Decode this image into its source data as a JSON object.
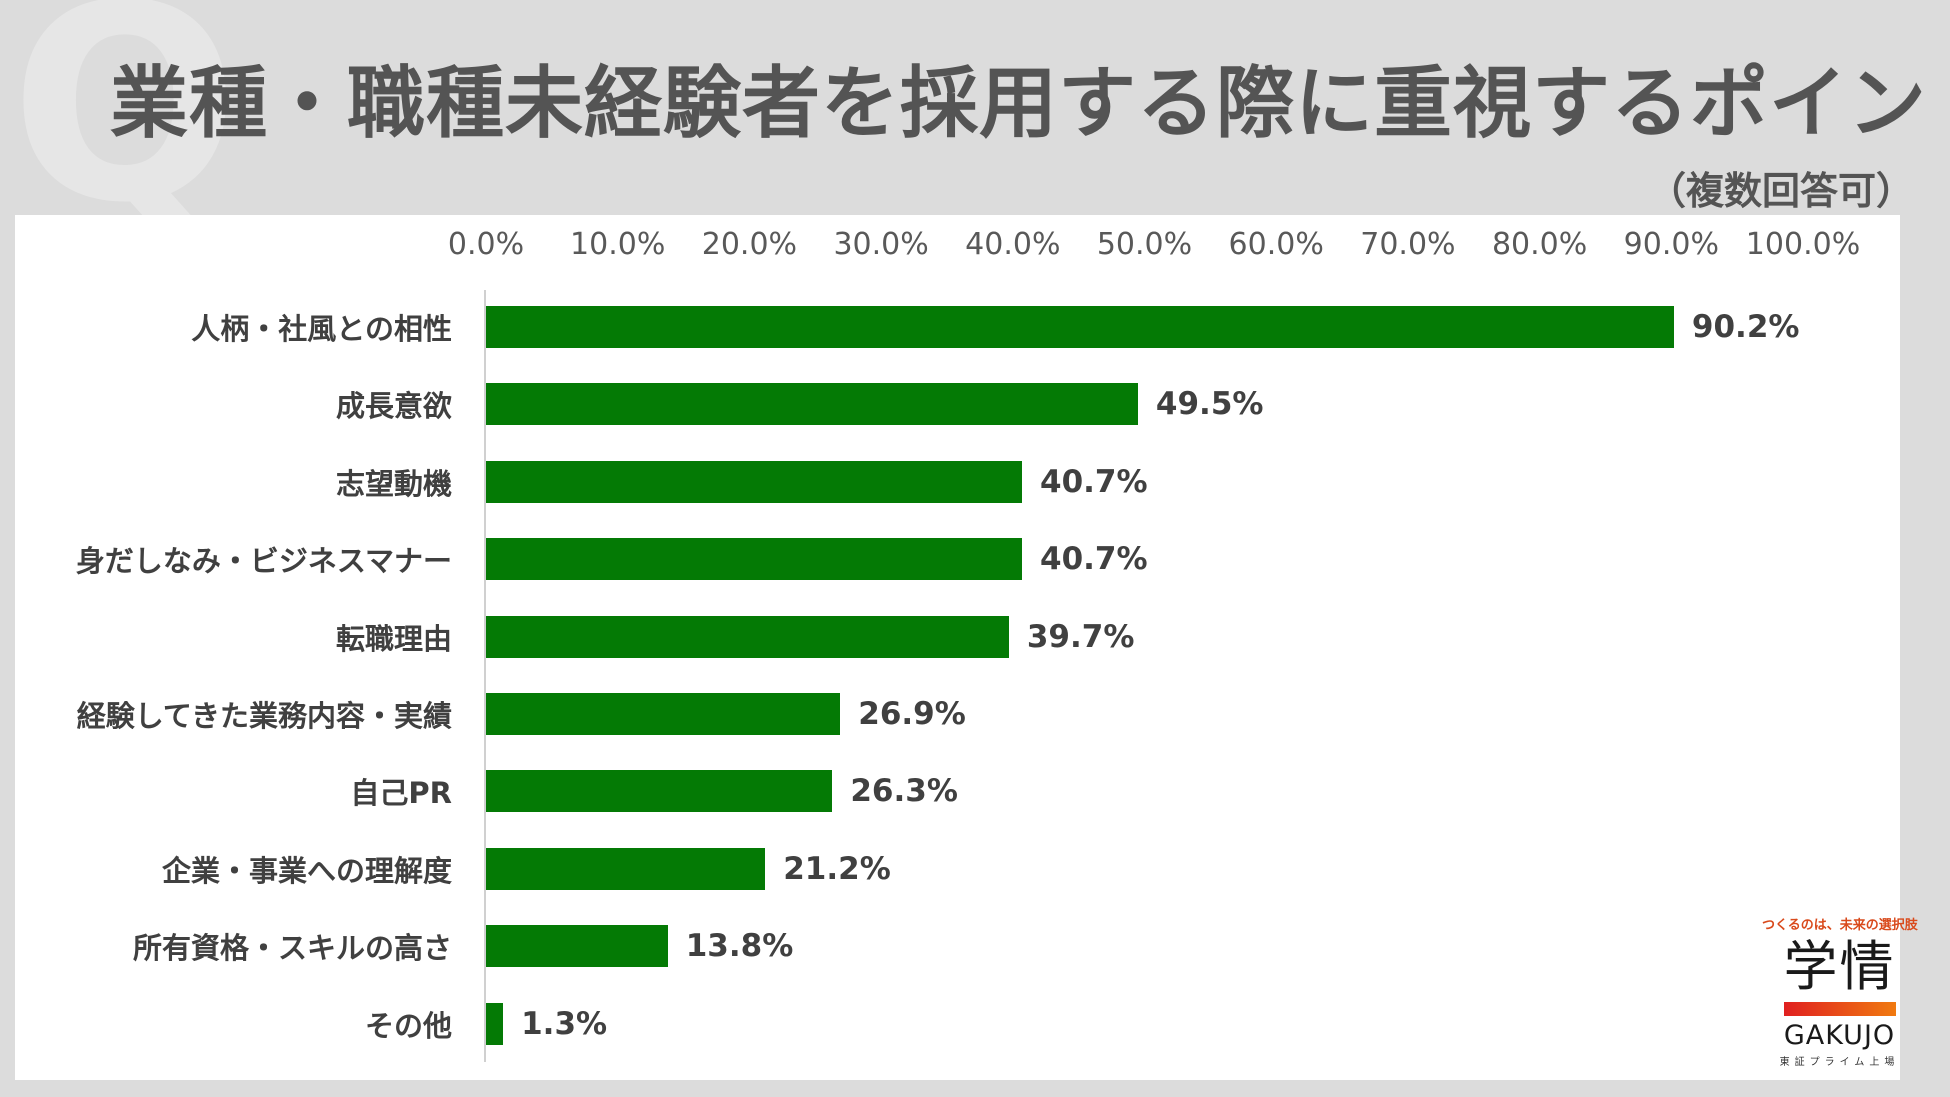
{
  "header": {
    "q_mark": "Q",
    "title": "業種・職種未経験者を採用する際に重視するポイント",
    "subtitle": "（複数回答可）"
  },
  "logo": {
    "tagline": "つくるのは、未来の選択肢",
    "kanji": "学情",
    "name": "GAKUJO",
    "listing": "東証プライム上場"
  },
  "colors": {
    "bar": "#047a05",
    "background": "#dcdcdc",
    "panel": "#ffffff",
    "text": "#404040"
  },
  "chart_data": {
    "type": "bar",
    "orientation": "horizontal",
    "title": "業種・職種未経験者を採用する際に重視するポイント",
    "subtitle": "（複数回答可）",
    "xlabel": "",
    "ylabel": "",
    "xlim": [
      0,
      100
    ],
    "x_ticks": [
      "0.0%",
      "10.0%",
      "20.0%",
      "30.0%",
      "40.0%",
      "50.0%",
      "60.0%",
      "70.0%",
      "80.0%",
      "90.0%",
      "100.0%"
    ],
    "x_axis_position": "top",
    "grid": false,
    "legend": null,
    "categories": [
      "人柄・社風との相性",
      "成長意欲",
      "志望動機",
      "身だしなみ・ビジネスマナー",
      "転職理由",
      "経験してきた業務内容・実績",
      "自己PR",
      "企業・事業への理解度",
      "所有資格・スキルの高さ",
      "その他"
    ],
    "values": [
      90.2,
      49.5,
      40.7,
      40.7,
      39.7,
      26.9,
      26.3,
      21.2,
      13.8,
      1.3
    ],
    "value_labels": [
      "90.2%",
      "49.5%",
      "40.7%",
      "40.7%",
      "39.7%",
      "26.9%",
      "26.3%",
      "21.2%",
      "13.8%",
      "1.3%"
    ],
    "unit": "%"
  }
}
